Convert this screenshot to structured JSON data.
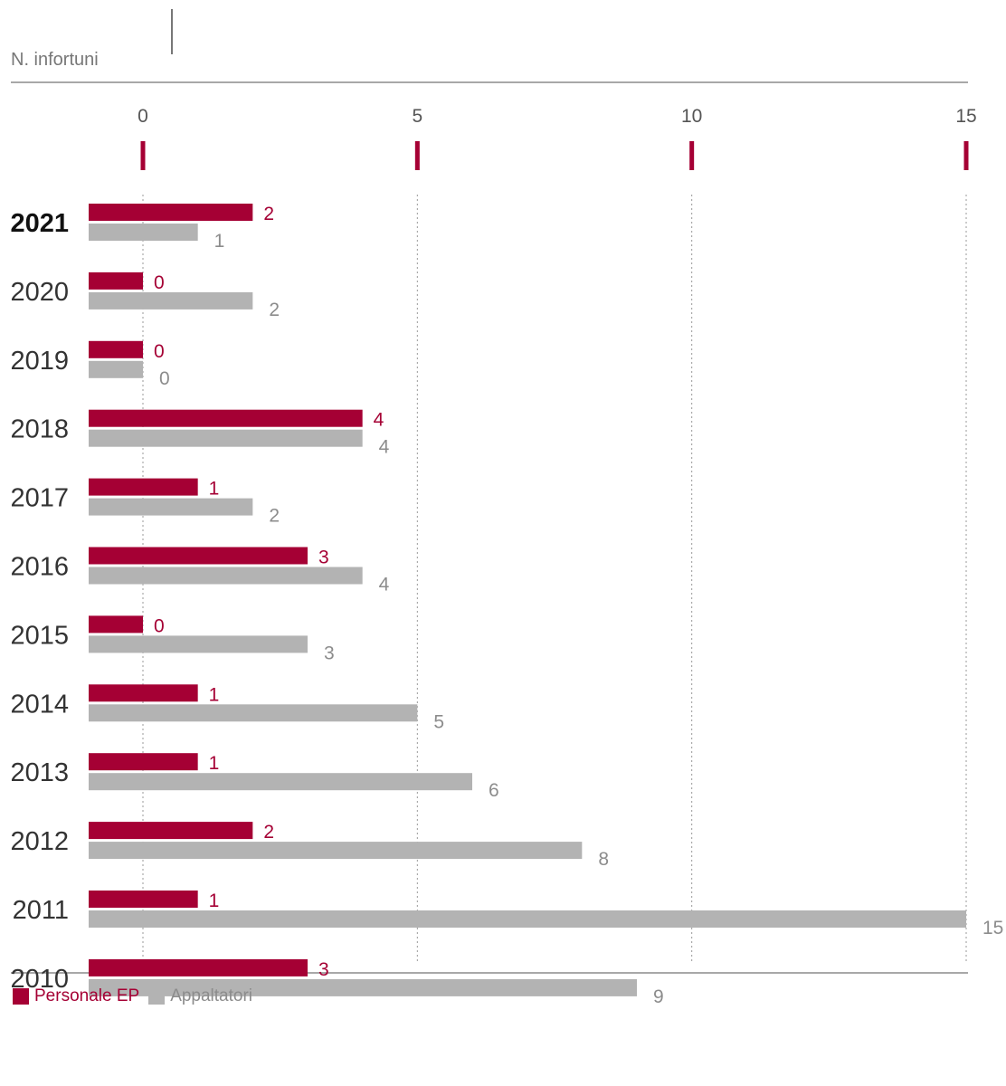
{
  "chart_data": {
    "type": "bar",
    "orientation": "horizontal",
    "unit_label": "N. infortuni",
    "categories": [
      "2021",
      "2020",
      "2019",
      "2018",
      "2017",
      "2016",
      "2015",
      "2014",
      "2013",
      "2012",
      "2011",
      "2010"
    ],
    "highlighted_category": "2021",
    "series": [
      {
        "name": "Personale EP",
        "color": "#a50034",
        "values": [
          2,
          0,
          0,
          4,
          1,
          3,
          0,
          1,
          1,
          2,
          1,
          3
        ]
      },
      {
        "name": "Appaltatori",
        "color": "#b3b3b3",
        "label_color": "#8c8c8c",
        "values": [
          1,
          2,
          0,
          4,
          2,
          4,
          3,
          5,
          6,
          8,
          15,
          9
        ]
      }
    ],
    "x_ticks": [
      "0",
      "5",
      "10",
      "15"
    ],
    "xlim": [
      0,
      15
    ],
    "xlim_note_hidden": "",
    "grid": true,
    "legend_position": "bottom-left"
  }
}
